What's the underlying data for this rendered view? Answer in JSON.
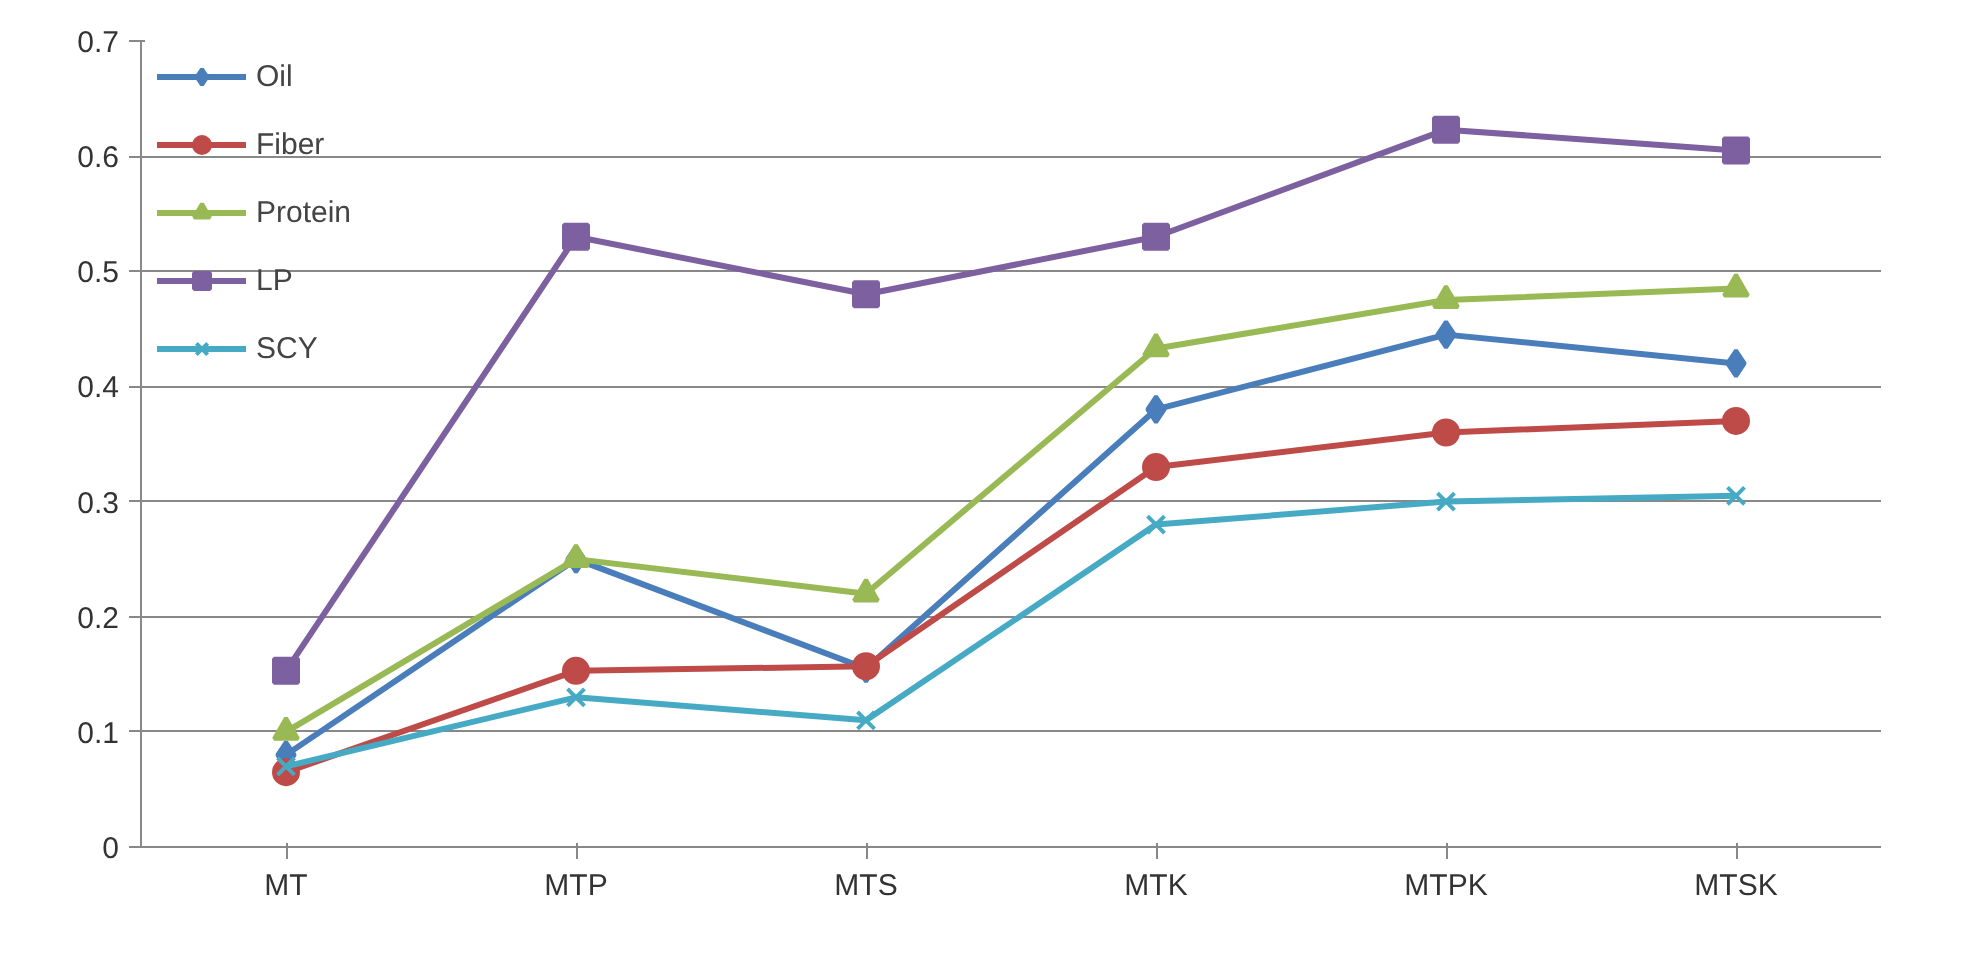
{
  "chart_data": {
    "type": "line",
    "categories": [
      "MT",
      "MTP",
      "MTS",
      "MTK",
      "MTPK",
      "MTSK"
    ],
    "series": [
      {
        "name": "Oil",
        "color": "#4a7ebb",
        "marker": "diamond",
        "values": [
          0.08,
          0.25,
          0.155,
          0.38,
          0.445,
          0.42
        ]
      },
      {
        "name": "Fiber",
        "color": "#be4b48",
        "marker": "circle",
        "values": [
          0.065,
          0.153,
          0.157,
          0.33,
          0.36,
          0.37
        ]
      },
      {
        "name": "Protein",
        "color": "#98b954",
        "marker": "triangle",
        "values": [
          0.1,
          0.25,
          0.22,
          0.433,
          0.475,
          0.485
        ]
      },
      {
        "name": "LP",
        "color": "#7d60a0",
        "marker": "square",
        "values": [
          0.153,
          0.53,
          0.48,
          0.53,
          0.623,
          0.605
        ]
      },
      {
        "name": "SCY",
        "color": "#46aac5",
        "marker": "cross",
        "values": [
          0.07,
          0.13,
          0.11,
          0.28,
          0.3,
          0.305
        ]
      }
    ],
    "ylim": [
      0,
      0.7
    ],
    "yticks": [
      0,
      0.1,
      0.2,
      0.3,
      0.4,
      0.5,
      0.6,
      0.7
    ],
    "grid": "y",
    "legend": "top left",
    "line_style": "solid"
  }
}
